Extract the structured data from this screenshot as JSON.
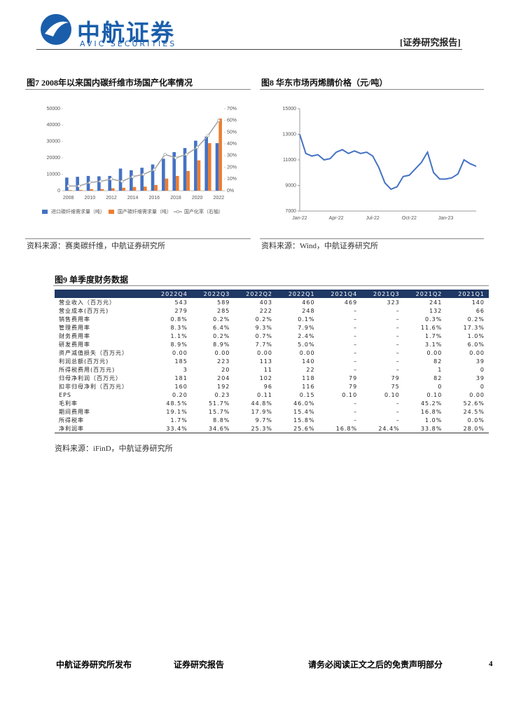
{
  "header": {
    "logo_cn": "中航证券",
    "logo_en": "AVIC SECURITIES",
    "tag": "[证券研究报告]"
  },
  "chart_data": [
    {
      "type": "bar",
      "title": "图7  2008年以来国内碳纤维市场国产化率情况",
      "categories": [
        "2008",
        null,
        "2010",
        null,
        "2012",
        null,
        "2014",
        null,
        "2016",
        null,
        "2018",
        null,
        "2020",
        null,
        "2022"
      ],
      "series": [
        {
          "name": "进口碳纤维需求量（吨）",
          "color": "#4472c4",
          "values": [
            8000,
            8500,
            9000,
            8800,
            9000,
            13500,
            12500,
            14000,
            16000,
            19500,
            23500,
            26000,
            30500,
            33000,
            29000
          ]
        },
        {
          "name": "国产碳纤维需求量（吨）",
          "color": "#ed7d31",
          "values": [
            400,
            500,
            1000,
            1000,
            1500,
            1800,
            2300,
            2500,
            3500,
            7400,
            9000,
            12000,
            18500,
            29000,
            44000
          ]
        },
        {
          "name": "国产化率（右轴）",
          "color": "#a5a5a5",
          "type": "line",
          "axis": "y2",
          "values": [
            4,
            4,
            7,
            8,
            10,
            8,
            12,
            14,
            18,
            31,
            28,
            31,
            37,
            47,
            60
          ]
        }
      ],
      "ylim": [
        0,
        50000
      ],
      "yticks": [
        0,
        10000,
        20000,
        30000,
        40000,
        50000
      ],
      "y2lim": [
        0,
        70
      ],
      "y2ticks": [
        {
          "value": 0,
          "label": "0%"
        },
        {
          "value": 10,
          "label": "10%"
        },
        {
          "value": 20,
          "label": "20%"
        },
        {
          "value": 30,
          "label": "30%"
        },
        {
          "value": 40,
          "label": "40%"
        },
        {
          "value": 50,
          "label": "50%"
        },
        {
          "value": 60,
          "label": "60%"
        },
        {
          "value": 70,
          "label": "70%"
        }
      ],
      "legend": "bottom",
      "source": "资料来源：赛奥碳纤维，中航证券研究所"
    },
    {
      "type": "line",
      "title": "图8  华东市场丙烯腈价格（元/吨）",
      "categories": [
        "Jan-22",
        null,
        null,
        null,
        null,
        null,
        "Apr-22",
        null,
        null,
        null,
        null,
        null,
        "Jul-22",
        null,
        null,
        null,
        null,
        null,
        "Oct-22",
        null,
        null,
        null,
        null,
        null,
        "Jan-23",
        null,
        null,
        null,
        null,
        null
      ],
      "values": [
        13000,
        11500,
        11300,
        11400,
        11000,
        11100,
        11600,
        11800,
        11500,
        11700,
        11500,
        11600,
        11300,
        10400,
        9200,
        8700,
        8900,
        9700,
        9800,
        10300,
        10800,
        11600,
        10000,
        9500,
        9500,
        9600,
        9900,
        11000,
        10700,
        10500
      ],
      "color": "#4472c4",
      "ylim": [
        7000,
        15000
      ],
      "yticks": [
        7000,
        9000,
        11000,
        13000,
        15000
      ],
      "source": "资料来源：Wind，中航证券研究所"
    }
  ],
  "table_section": {
    "title": "图9  单季度财务数据",
    "header": [
      "2022Q4",
      "2022Q3",
      "2022Q2",
      "2022Q1",
      "2021Q4",
      "2021Q3",
      "2021Q2",
      "2021Q1"
    ],
    "rows": [
      [
        "营业收入（百万元）",
        "543",
        "589",
        "403",
        "460",
        "469",
        "323",
        "241",
        "140"
      ],
      [
        "营业成本(百万元)",
        "279",
        "285",
        "222",
        "248",
        "–",
        "–",
        "132",
        "66"
      ],
      [
        "销售费用率",
        "0.8%",
        "0.2%",
        "0.2%",
        "0.1%",
        "–",
        "–",
        "0.3%",
        "0.2%"
      ],
      [
        "管理费用率",
        "8.3%",
        "6.4%",
        "9.3%",
        "7.9%",
        "–",
        "–",
        "11.6%",
        "17.3%"
      ],
      [
        "财务费用率",
        "1.1%",
        "0.2%",
        "0.7%",
        "2.4%",
        "–",
        "–",
        "1.7%",
        "1.0%"
      ],
      [
        "研发费用率",
        "8.9%",
        "8.9%",
        "7.7%",
        "5.0%",
        "–",
        "–",
        "3.1%",
        "6.0%"
      ],
      [
        "资产减值损失（百万元）",
        "0.00",
        "0.00",
        "0.00",
        "0.00",
        "–",
        "–",
        "0.00",
        "0.00"
      ],
      [
        "利润总额(百万元)",
        "185",
        "223",
        "113",
        "140",
        "–",
        "–",
        "82",
        "39"
      ],
      [
        "所得税费用(百万元)",
        "3",
        "20",
        "11",
        "22",
        "–",
        "–",
        "1",
        "0"
      ],
      [
        "归母净利润（百万元）",
        "181",
        "204",
        "102",
        "118",
        "79",
        "79",
        "82",
        "39"
      ],
      [
        "扣非归母净利（百万元）",
        "160",
        "192",
        "96",
        "116",
        "79",
        "75",
        "0",
        "0"
      ],
      [
        "EPS",
        "0.20",
        "0.23",
        "0.11",
        "0.15",
        "0.10",
        "0.10",
        "0.10",
        "0.00"
      ],
      [
        "毛利率",
        "48.5%",
        "51.7%",
        "44.8%",
        "46.0%",
        "–",
        "–",
        "45.2%",
        "52.6%"
      ],
      [
        "期间费用率",
        "19.1%",
        "15.7%",
        "17.9%",
        "15.4%",
        "–",
        "–",
        "16.8%",
        "24.5%"
      ],
      [
        "所得税率",
        "1.7%",
        "8.8%",
        "9.7%",
        "15.8%",
        "–",
        "–",
        "1.0%",
        "0.0%"
      ],
      [
        "净利润率",
        "33.4%",
        "34.6%",
        "25.3%",
        "25.6%",
        "16.8%",
        "24.4%",
        "33.8%",
        "28.0%"
      ]
    ],
    "source": "资料来源：iFinD，中航证券研究所"
  },
  "footer": {
    "left": "中航证券研究所发布",
    "center": "证券研究报告",
    "right": "请务必阅读正文之后的免责声明部分",
    "page": "4"
  }
}
